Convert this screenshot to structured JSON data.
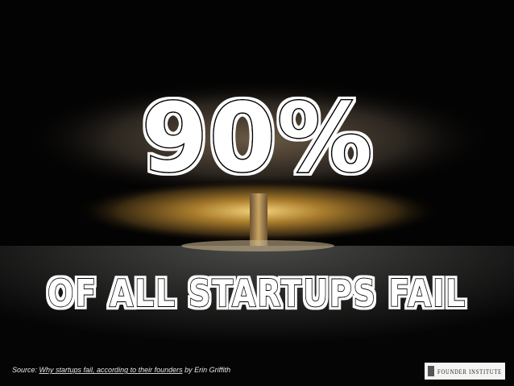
{
  "headline": "90%",
  "subheadline": "OF ALL STARTUPS FAIL",
  "source": {
    "prefix": "Source: ",
    "link": "Why startups fail, according to their founders",
    "suffix": " by Erin Griffith"
  },
  "logo": "FOUNDER INSTITUTE"
}
